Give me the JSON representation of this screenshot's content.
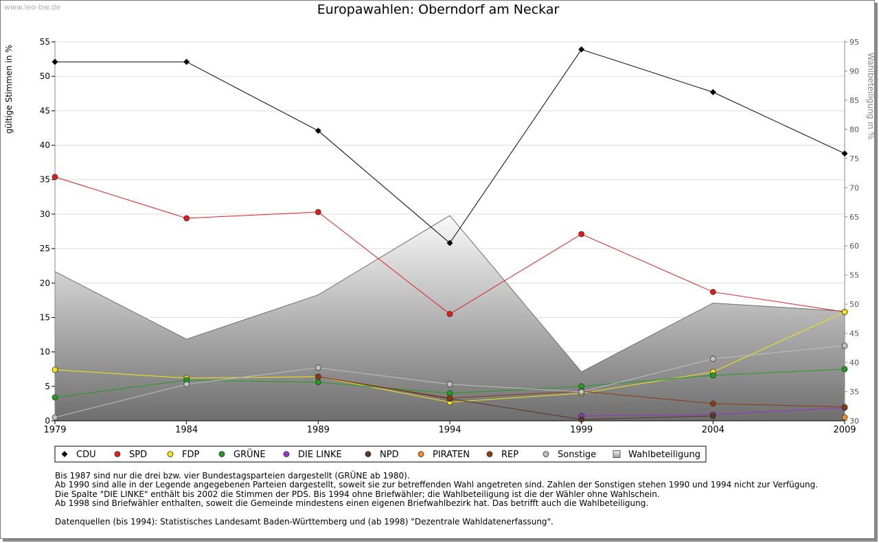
{
  "watermark": "www.leo-bw.de",
  "chart_data": {
    "type": "line",
    "title": "Europawahlen: Oberndorf am Neckar",
    "ylabel": "gültige Stimmen in %",
    "y2label": "Wahlbeteiligung in %",
    "x": [
      "1979",
      "1984",
      "1989",
      "1994",
      "1999",
      "2004",
      "2009"
    ],
    "ylim": [
      0,
      55
    ],
    "yticks": [
      "0",
      "5",
      "10",
      "15",
      "20",
      "25",
      "30",
      "35",
      "40",
      "45",
      "50",
      "55"
    ],
    "y2lim": [
      30,
      95
    ],
    "y2ticks": [
      "30",
      "35",
      "40",
      "45",
      "50",
      "55",
      "60",
      "65",
      "70",
      "75",
      "80",
      "85",
      "90",
      "95"
    ],
    "grid": true,
    "legend_position": "bottom",
    "area": {
      "name": "Wahlbeteiligung",
      "values": [
        55.6,
        44.0,
        51.6,
        65.2,
        38.4,
        50.2,
        48.8
      ]
    },
    "series": [
      {
        "name": "CDU",
        "color": "#000000",
        "values": [
          52.1,
          52.1,
          42.1,
          25.8,
          53.9,
          47.7,
          38.8
        ]
      },
      {
        "name": "SPD",
        "color": "#e41a1c",
        "values": [
          35.4,
          29.4,
          30.3,
          15.5,
          27.1,
          18.7,
          15.8
        ]
      },
      {
        "name": "FDP",
        "color": "#f5e612",
        "values": [
          7.4,
          6.2,
          6.4,
          2.7,
          4.0,
          7.1,
          15.8
        ]
      },
      {
        "name": "GRÜNE",
        "color": "#1f9e1f",
        "values": [
          3.4,
          5.9,
          5.6,
          4.0,
          5.0,
          6.6,
          7.5
        ]
      },
      {
        "name": "DIE LINKE",
        "color": "#9932cc",
        "values": [
          null,
          null,
          null,
          null,
          0.7,
          0.9,
          1.9
        ]
      },
      {
        "name": "NPD",
        "color": "#5a3620",
        "values": [
          null,
          null,
          6.4,
          3.2,
          0.2,
          0.7,
          null
        ]
      },
      {
        "name": "PIRATEN",
        "color": "#f08a24",
        "values": [
          null,
          null,
          null,
          null,
          null,
          null,
          0.5
        ]
      },
      {
        "name": "REP",
        "color": "#8b3a10",
        "values": [
          null,
          null,
          6.4,
          3.3,
          4.3,
          2.5,
          2.0
        ]
      },
      {
        "name": "Sonstige",
        "color": "#c0c0c0",
        "values": [
          0.5,
          5.3,
          7.7,
          5.3,
          4.2,
          9.0,
          10.9
        ]
      }
    ],
    "legend": [
      "CDU",
      "SPD",
      "FDP",
      "GRÜNE",
      "DIE LINKE",
      "NPD",
      "PIRATEN",
      "REP",
      "Sonstige",
      "Wahlbeteiligung"
    ]
  },
  "notes": [
    "Bis 1987 sind nur die drei bzw. vier Bundestagsparteien dargestellt (GRÜNE ab 1980).",
    "Ab 1990 sind alle in der Legende angegebenen Parteien dargestellt, soweit sie zur betreffenden Wahl angetreten sind. Zahlen der Sonstigen stehen 1990 und 1994 nicht zur Verfügung.",
    "Die Spalte \"DIE LINKE\" enthält bis 2002 die Stimmen der PDS. Bis 1994 ohne Briefwähler; die Wahlbeteiligung ist die der Wähler ohne Wahlschein.",
    "Ab 1998 sind Briefwähler enthalten, soweit die Gemeinde mindestens einen eigenen Briefwahlbezirk hat. Das betrifft auch die Wahlbeteiligung.",
    "",
    "Datenquellen (bis 1994): Statistisches Landesamt Baden-Württemberg und (ab 1998) \"Dezentrale Wahldatenerfassung\"."
  ]
}
